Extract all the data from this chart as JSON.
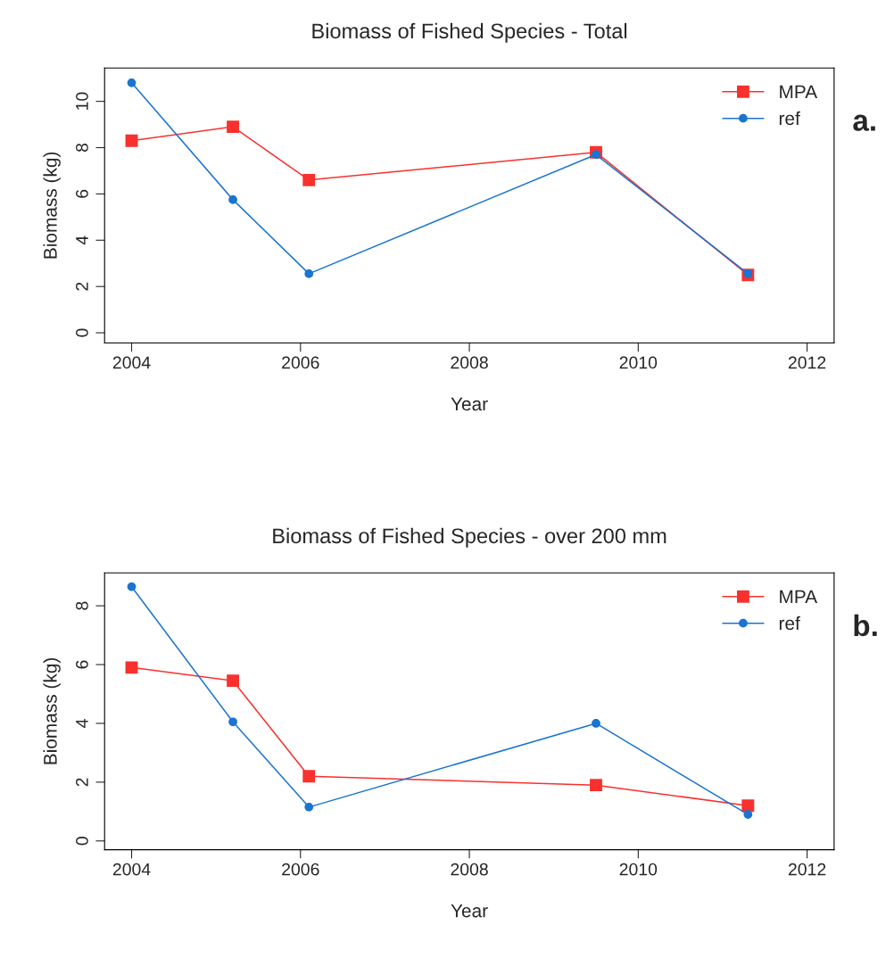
{
  "chart_data": [
    {
      "type": "line",
      "title": "Biomass of Fished Species - Total",
      "xlabel": "Year",
      "ylabel": "Biomass (kg)",
      "x": [
        2004.0,
        2005.2,
        2006.1,
        2009.5,
        2011.3
      ],
      "series": [
        {
          "name": "MPA",
          "color": "#f8312f",
          "marker": "square",
          "values": [
            8.3,
            8.9,
            6.6,
            7.8,
            2.5
          ]
        },
        {
          "name": "ref",
          "color": "#1a74d2",
          "marker": "circle",
          "values": [
            10.8,
            5.75,
            2.55,
            7.7,
            2.55
          ]
        }
      ],
      "xlim": [
        2003.68,
        2012.32
      ],
      "xticks": [
        2004,
        2006,
        2008,
        2010,
        2012
      ],
      "ylim": [
        -0.44,
        11.44
      ],
      "yticks": [
        0,
        2,
        4,
        6,
        8,
        10
      ],
      "legend": "top right",
      "grid": false,
      "line_style": "solid",
      "annotations": [
        "a."
      ]
    },
    {
      "type": "line",
      "title": "Biomass of Fished Species - over 200 mm",
      "xlabel": "Year",
      "ylabel": "Biomass (kg)",
      "x": [
        2004.0,
        2005.2,
        2006.1,
        2009.5,
        2011.3
      ],
      "series": [
        {
          "name": "MPA",
          "color": "#f8312f",
          "marker": "square",
          "values": [
            5.9,
            5.45,
            2.2,
            1.9,
            1.2
          ]
        },
        {
          "name": "ref",
          "color": "#1a74d2",
          "marker": "circle",
          "values": [
            8.65,
            4.05,
            1.15,
            4.0,
            0.9
          ]
        }
      ],
      "xlim": [
        2003.68,
        2012.32
      ],
      "xticks": [
        2004,
        2006,
        2008,
        2010,
        2012
      ],
      "ylim": [
        -0.3,
        9.12
      ],
      "yticks": [
        0,
        2,
        4,
        6,
        8
      ],
      "legend": "top right",
      "grid": false,
      "line_style": "solid",
      "annotations": [
        "b."
      ]
    }
  ]
}
